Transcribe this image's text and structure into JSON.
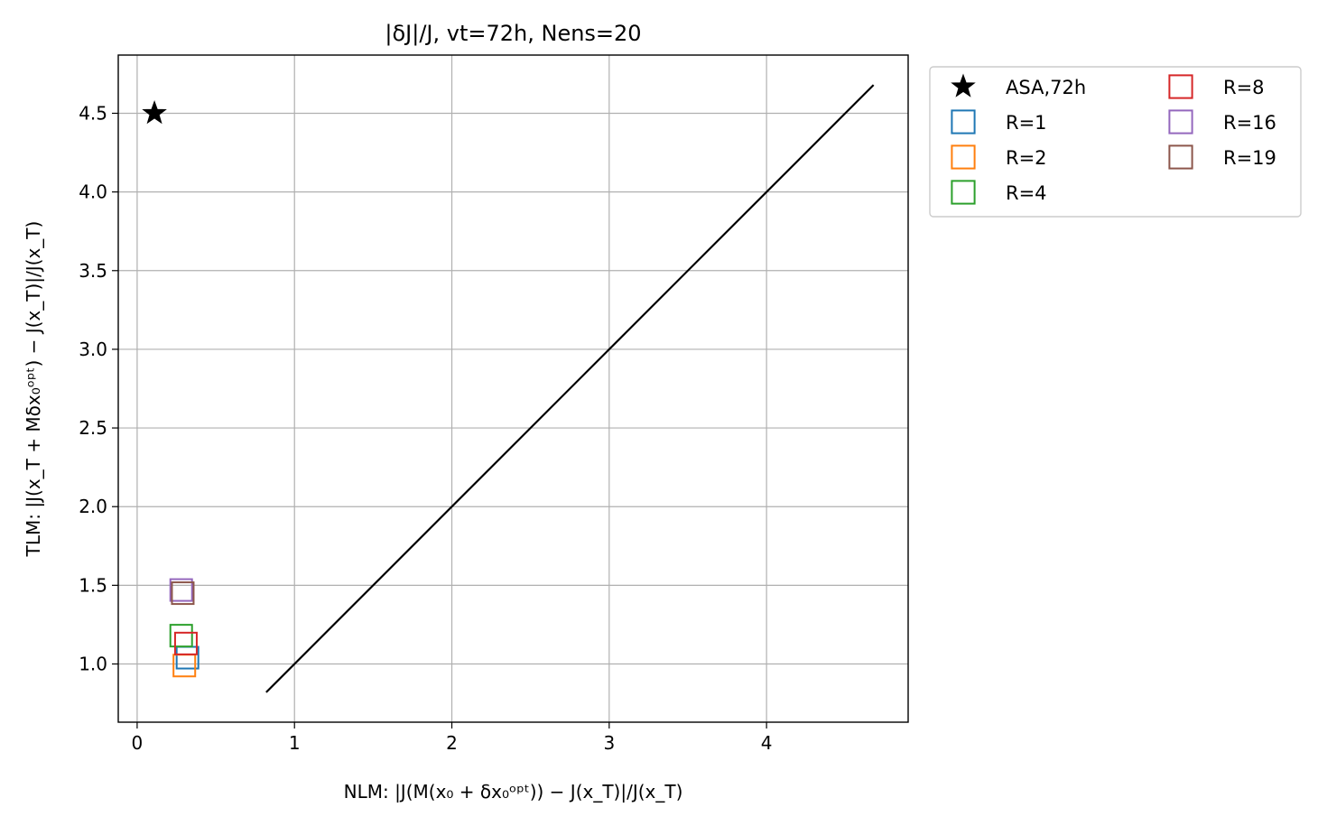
{
  "chart_data": {
    "type": "scatter",
    "title": "|δJ|/J, vt=72h, Nens=20",
    "xlabel": "NLM: |J(M(x₀ + δx₀ᵒᵖᵗ)) − J(x_T)|/J(x_T)",
    "ylabel": "TLM: |J(x_T + Mδx₀ᵒᵖᵗ) − J(x_T)|/J(x_T)",
    "xlim": [
      -0.12,
      4.9
    ],
    "ylim": [
      0.63,
      4.87
    ],
    "xticks": [
      0,
      1,
      2,
      3,
      4
    ],
    "yticks": [
      1.0,
      1.5,
      2.0,
      2.5,
      3.0,
      3.5,
      4.0,
      4.5
    ],
    "xtick_labels": [
      "0",
      "1",
      "2",
      "3",
      "4"
    ],
    "ytick_labels": [
      "1.0",
      "1.5",
      "2.0",
      "2.5",
      "3.0",
      "3.5",
      "4.0",
      "4.5"
    ],
    "grid": true,
    "legend_position": "outside-right-top",
    "legend_columns": 2,
    "reference_line": {
      "x": [
        0.82,
        4.68
      ],
      "y": [
        0.82,
        4.68
      ],
      "color": "#000000"
    },
    "series": [
      {
        "name": "ASA,72h",
        "marker": "star",
        "color": "#000000",
        "points": [
          [
            0.11,
            4.5
          ]
        ]
      },
      {
        "name": "R=1",
        "marker": "square-open",
        "color": "#1f77b4",
        "points": [
          [
            0.32,
            1.04
          ]
        ]
      },
      {
        "name": "R=2",
        "marker": "square-open",
        "color": "#ff7f0e",
        "points": [
          [
            0.3,
            0.99
          ]
        ]
      },
      {
        "name": "R=4",
        "marker": "square-open",
        "color": "#2ca02c",
        "points": [
          [
            0.28,
            1.18
          ]
        ]
      },
      {
        "name": "R=8",
        "marker": "square-open",
        "color": "#d62728",
        "points": [
          [
            0.31,
            1.13
          ]
        ]
      },
      {
        "name": "R=16",
        "marker": "square-open",
        "color": "#9467bd",
        "points": [
          [
            0.28,
            1.47
          ]
        ]
      },
      {
        "name": "R=19",
        "marker": "square-open",
        "color": "#8c564b",
        "points": [
          [
            0.29,
            1.45
          ]
        ]
      }
    ]
  }
}
